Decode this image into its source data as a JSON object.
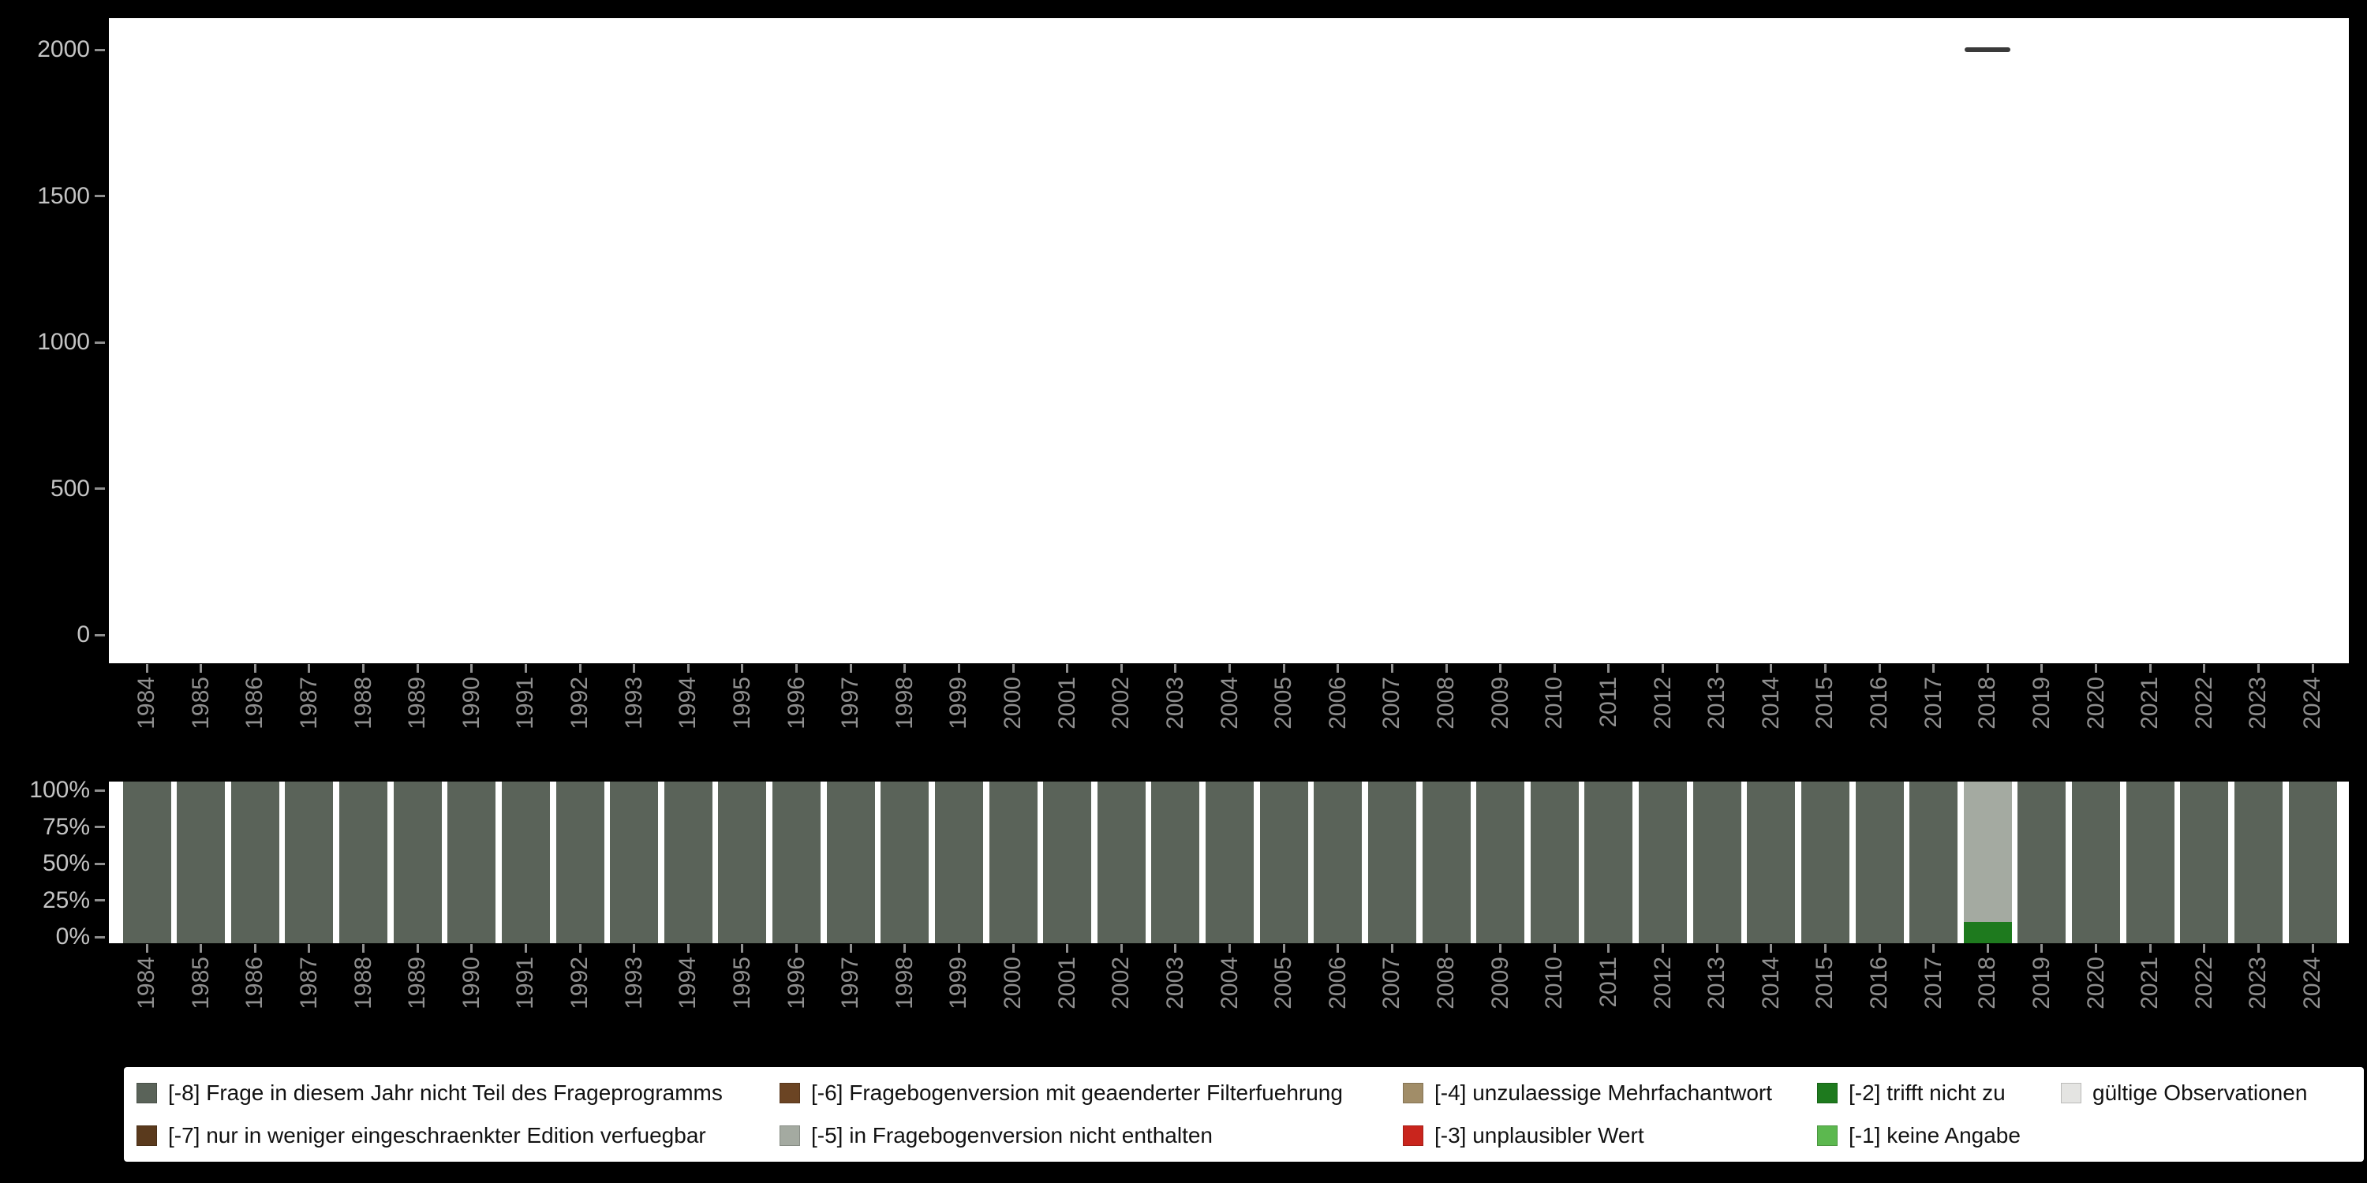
{
  "figure": {
    "background": "#000000",
    "panel_background": "#ffffff"
  },
  "axes": {
    "top_y_tick_labels": [
      "0",
      "500",
      "1000",
      "1500",
      "2000"
    ],
    "top_y_tick_values": [
      0,
      500,
      1000,
      1500,
      2000
    ],
    "bottom_y_tick_labels": [
      "0%",
      "25%",
      "50%",
      "75%",
      "100%"
    ],
    "bottom_y_tick_values": [
      0,
      25,
      50,
      75,
      100
    ]
  },
  "legend": {
    "items": [
      {
        "code": "-8",
        "label": "[-8] Frage in diesem Jahr nicht Teil des Frageprogramms",
        "color": "#5a6359"
      },
      {
        "code": "-6",
        "label": "[-6] Fragebogenversion mit geaenderter Filterfuehrung",
        "color": "#6b4423"
      },
      {
        "code": "-4",
        "label": "[-4] unzulaessige Mehrfachantwort",
        "color": "#a18d68"
      },
      {
        "code": "-2",
        "label": "[-2] trifft nicht zu",
        "color": "#1e7a1e"
      },
      {
        "code": "valid",
        "label": "gültige Observationen",
        "color": "#e4e4e2"
      },
      {
        "code": "-7",
        "label": "[-7] nur in weniger eingeschraenkter Edition verfuegbar",
        "color": "#5a3a1d"
      },
      {
        "code": "-5",
        "label": "[-5] in Fragebogenversion nicht enthalten",
        "color": "#a4aaa1"
      },
      {
        "code": "-3",
        "label": "[-3] unplausibler Wert",
        "color": "#c9251d"
      },
      {
        "code": "-1",
        "label": "[-1] keine Angabe",
        "color": "#5cb84f"
      }
    ]
  },
  "chart_data": [
    {
      "id": "valid-observations-count",
      "type": "scatter",
      "marker": "horizontal-dash",
      "marker_color": "#3a3a3a",
      "title": "",
      "xlabel": "",
      "ylabel": "",
      "ylim": [
        0,
        2000
      ],
      "y_ticks": [
        0,
        500,
        1000,
        1500,
        2000
      ],
      "x_domain": [
        "1984",
        "2024"
      ],
      "points": [
        {
          "x": "2018",
          "y": 2000
        }
      ]
    },
    {
      "id": "missing-codes-composition",
      "type": "bar",
      "stacked": true,
      "unit": "percent",
      "stack_order": "bottom-to-top",
      "title": "",
      "xlabel": "",
      "ylabel": "",
      "ylim": [
        0,
        100
      ],
      "y_ticks": [
        0,
        25,
        50,
        75,
        100
      ],
      "grid": false,
      "legend_position": "bottom",
      "categories": [
        "1984",
        "1985",
        "1986",
        "1987",
        "1988",
        "1989",
        "1990",
        "1991",
        "1992",
        "1993",
        "1994",
        "1995",
        "1996",
        "1997",
        "1998",
        "1999",
        "2000",
        "2001",
        "2002",
        "2003",
        "2004",
        "2005",
        "2006",
        "2007",
        "2008",
        "2009",
        "2010",
        "2011",
        "2012",
        "2013",
        "2014",
        "2015",
        "2016",
        "2017",
        "2018",
        "2019",
        "2020",
        "2021",
        "2022",
        "2023",
        "2024"
      ],
      "series": [
        {
          "key": "-8",
          "name": "[-8] Frage in diesem Jahr nicht Teil des Frageprogramms",
          "values": [
            100,
            100,
            100,
            100,
            100,
            100,
            100,
            100,
            100,
            100,
            100,
            100,
            100,
            100,
            100,
            100,
            100,
            100,
            100,
            100,
            100,
            100,
            100,
            100,
            100,
            100,
            100,
            100,
            100,
            100,
            100,
            100,
            100,
            100,
            0,
            100,
            100,
            100,
            100,
            100,
            100
          ]
        },
        {
          "key": "-2",
          "name": "[-2] trifft nicht zu",
          "values": [
            0,
            0,
            0,
            0,
            0,
            0,
            0,
            0,
            0,
            0,
            0,
            0,
            0,
            0,
            0,
            0,
            0,
            0,
            0,
            0,
            0,
            0,
            0,
            0,
            0,
            0,
            0,
            0,
            0,
            0,
            0,
            0,
            0,
            0,
            13,
            0,
            0,
            0,
            0,
            0,
            0
          ]
        },
        {
          "key": "-5",
          "name": "[-5] in Fragebogenversion nicht enthalten",
          "values": [
            0,
            0,
            0,
            0,
            0,
            0,
            0,
            0,
            0,
            0,
            0,
            0,
            0,
            0,
            0,
            0,
            0,
            0,
            0,
            0,
            0,
            0,
            0,
            0,
            0,
            0,
            0,
            0,
            0,
            0,
            0,
            0,
            0,
            0,
            87,
            0,
            0,
            0,
            0,
            0,
            0
          ]
        }
      ]
    }
  ]
}
